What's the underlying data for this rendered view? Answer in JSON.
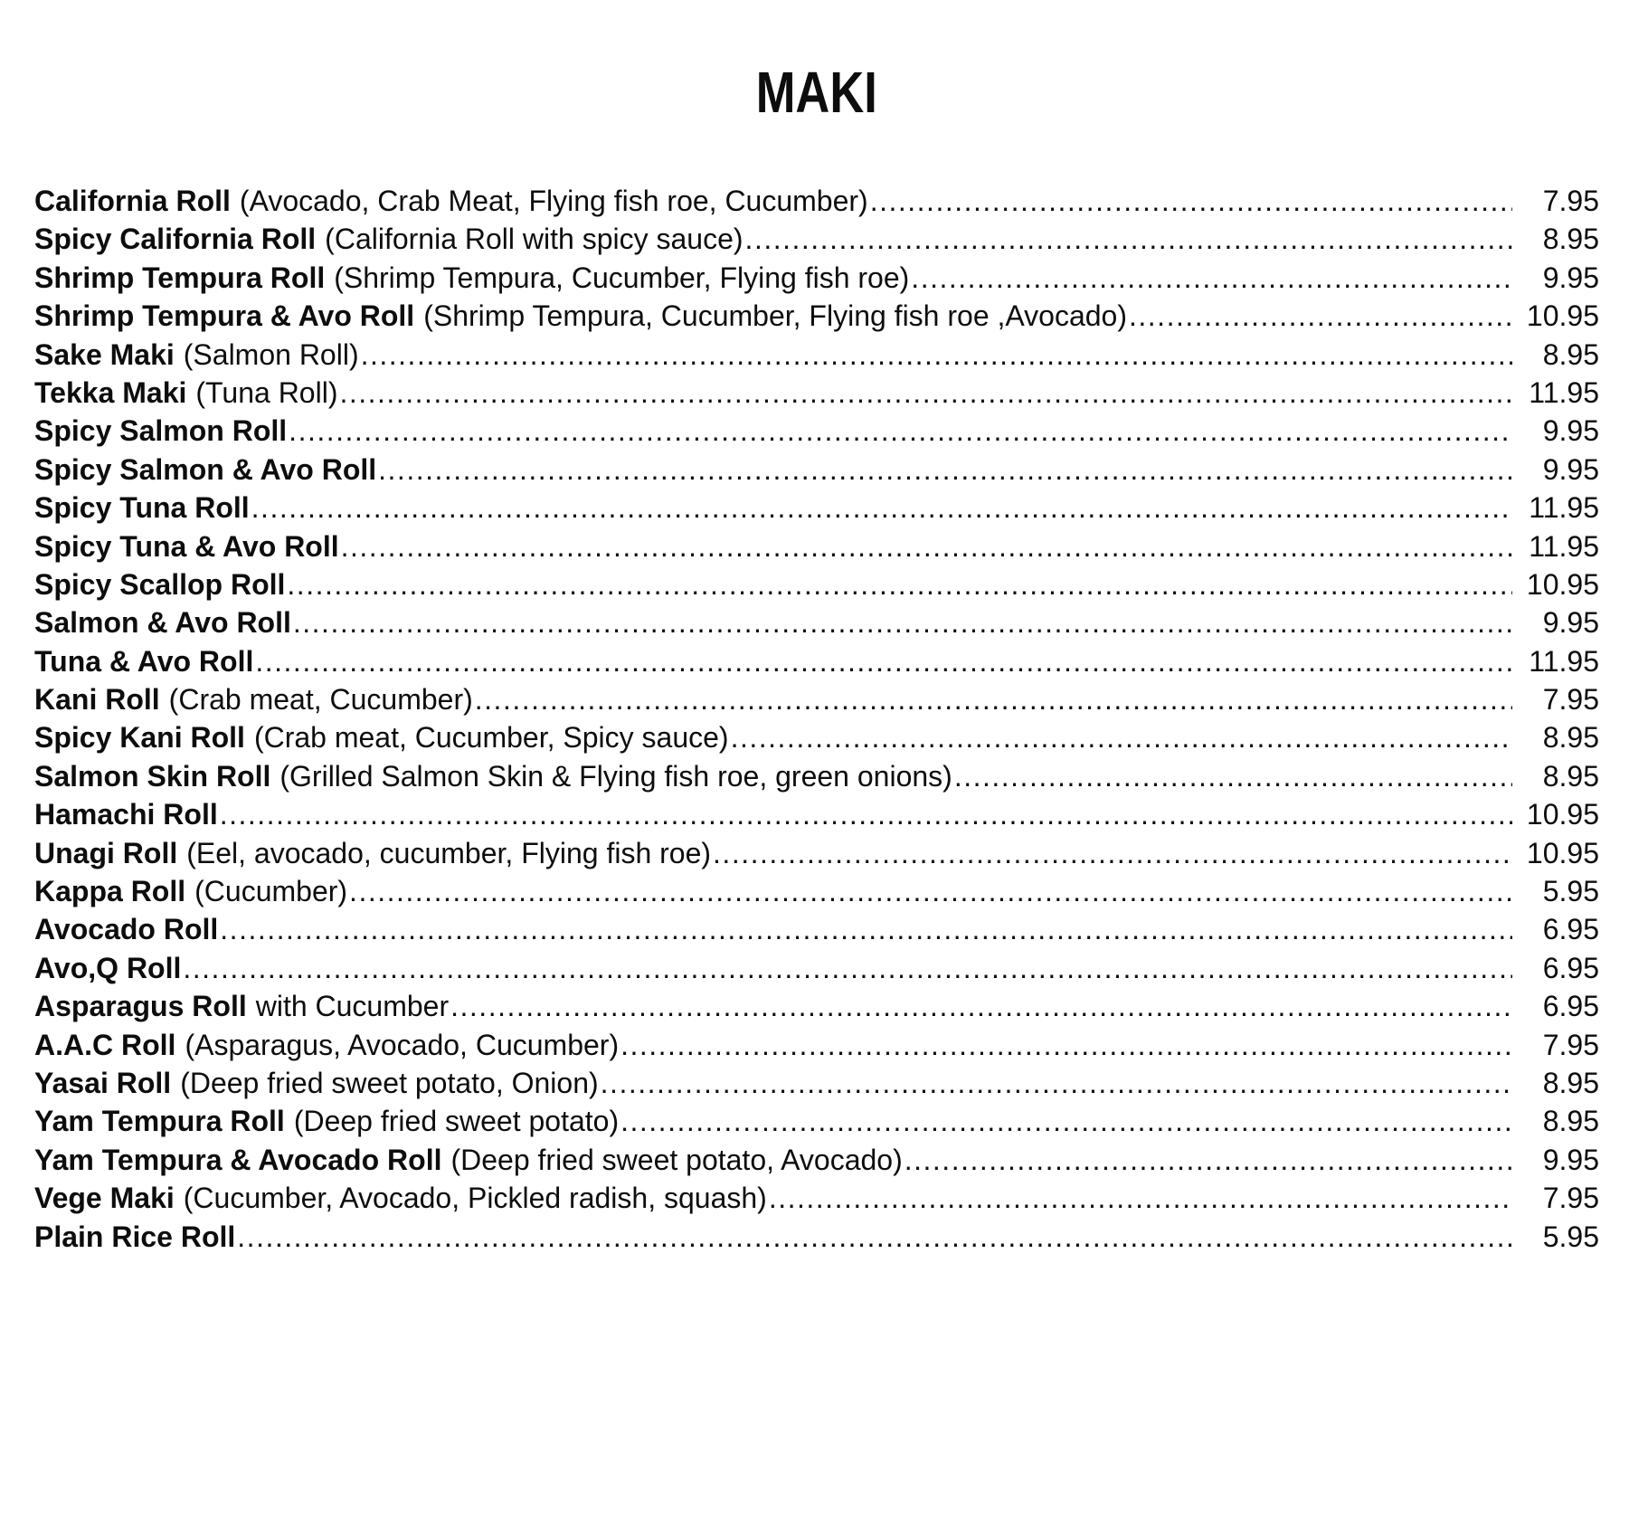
{
  "page": {
    "title": "MAKI"
  },
  "menu": {
    "items": [
      {
        "name": "California Roll",
        "desc": "(Avocado, Crab Meat, Flying fish roe, Cucumber)",
        "price": "7.95"
      },
      {
        "name": "Spicy California Roll",
        "desc": "(California Roll with spicy sauce)",
        "price": "8.95"
      },
      {
        "name": "Shrimp Tempura Roll",
        "desc": "(Shrimp Tempura, Cucumber, Flying fish roe)",
        "price": "9.95"
      },
      {
        "name": "Shrimp Tempura & Avo Roll",
        "desc": "(Shrimp Tempura, Cucumber, Flying fish roe ,Avocado)",
        "price": "10.95"
      },
      {
        "name": "Sake Maki",
        "desc": "(Salmon Roll)",
        "price": "8.95"
      },
      {
        "name": "Tekka Maki",
        "desc": "(Tuna Roll)",
        "price": "11.95"
      },
      {
        "name": "Spicy Salmon Roll",
        "desc": "",
        "price": "9.95"
      },
      {
        "name": "Spicy Salmon & Avo Roll",
        "desc": "",
        "price": "9.95"
      },
      {
        "name": "Spicy Tuna Roll",
        "desc": "",
        "price": "11.95"
      },
      {
        "name": "Spicy Tuna & Avo Roll",
        "desc": "",
        "price": "11.95"
      },
      {
        "name": "Spicy Scallop Roll",
        "desc": "",
        "price": "10.95"
      },
      {
        "name": "Salmon & Avo Roll",
        "desc": "",
        "price": "9.95"
      },
      {
        "name": "Tuna & Avo Roll",
        "desc": "",
        "price": "11.95"
      },
      {
        "name": "Kani Roll",
        "desc": "(Crab meat, Cucumber)",
        "price": "7.95"
      },
      {
        "name": "Spicy Kani Roll",
        "desc": "(Crab meat, Cucumber, Spicy sauce)",
        "price": "8.95"
      },
      {
        "name": "Salmon Skin Roll",
        "desc": "(Grilled Salmon Skin & Flying fish roe, green onions)",
        "price": "8.95"
      },
      {
        "name": "Hamachi Roll",
        "desc": "",
        "price": "10.95"
      },
      {
        "name": "Unagi Roll",
        "desc": "(Eel, avocado, cucumber, Flying fish roe)",
        "price": "10.95"
      },
      {
        "name": "Kappa Roll",
        "desc": "(Cucumber)",
        "price": "5.95"
      },
      {
        "name": "Avocado Roll",
        "desc": "",
        "price": "6.95"
      },
      {
        "name": "Avo,Q Roll",
        "desc": "",
        "price": "6.95"
      },
      {
        "name": "Asparagus Roll",
        "desc": "with Cucumber",
        "price": "6.95"
      },
      {
        "name": "A.A.C Roll",
        "desc": "(Asparagus, Avocado, Cucumber)",
        "price": "7.95"
      },
      {
        "name": "Yasai Roll",
        "desc": "(Deep fried sweet potato, Onion)",
        "price": "8.95"
      },
      {
        "name": "Yam Tempura Roll",
        "desc": "(Deep fried sweet potato)",
        "price": "8.95"
      },
      {
        "name": "Yam Tempura & Avocado Roll",
        "desc": "(Deep fried sweet potato, Avocado)",
        "price": "9.95"
      },
      {
        "name": "Vege Maki",
        "desc": "(Cucumber, Avocado, Pickled radish, squash)",
        "price": "7.95"
      },
      {
        "name": "Plain Rice Roll",
        "desc": "",
        "price": "5.95"
      }
    ]
  }
}
